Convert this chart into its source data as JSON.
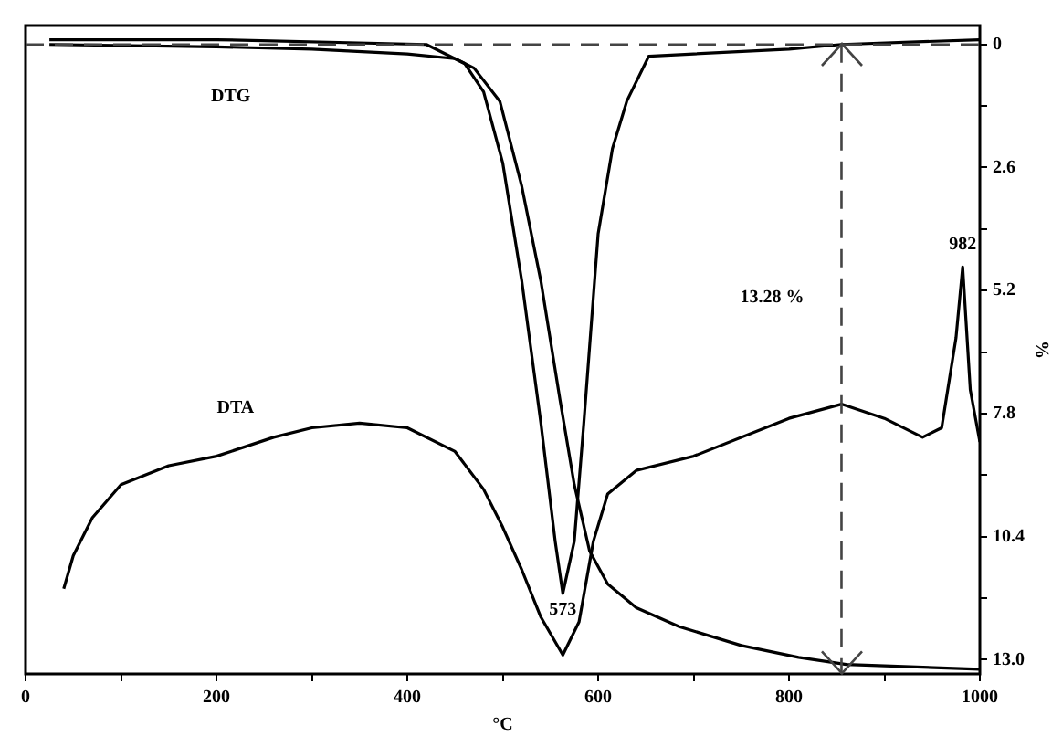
{
  "chart_data": {
    "type": "line",
    "xlabel": "°C",
    "ylabel": "%",
    "xlim": [
      0,
      1000
    ],
    "xticks": [
      0,
      {
        "value": 100,
        "label": null
      },
      200,
      {
        "value": 300,
        "label": null
      },
      400,
      {
        "value": 500,
        "label": null
      },
      600,
      {
        "value": 700,
        "label": null
      },
      800,
      {
        "value": 900,
        "label": null
      },
      1000
    ],
    "ylim": [
      13.3,
      -0.4
    ],
    "yticks": [
      0,
      {
        "value": 1.3,
        "label": null
      },
      2.6,
      {
        "value": 3.9,
        "label": null
      },
      5.2,
      {
        "value": 6.5,
        "label": null
      },
      7.8,
      {
        "value": 9.1,
        "label": null
      },
      10.4,
      {
        "value": 11.7,
        "label": null
      },
      {
        "value": 13,
        "label": "13.0"
      }
    ],
    "grid": false,
    "legend": false,
    "marker": "none",
    "line_style": "solid",
    "series": [
      {
        "color": "#000000",
        "x": [
          25,
          200,
          300,
          400,
          450,
          470,
          497,
          520,
          540,
          560,
          575,
          591,
          610,
          640,
          685,
          750,
          810,
          860,
          1000
        ],
        "values": [
          0,
          0.05,
          0.1,
          0.2,
          0.3,
          0.5,
          1.2,
          3.0,
          5.0,
          7.5,
          9.3,
          10.7,
          11.4,
          11.9,
          12.3,
          12.7,
          12.95,
          13.1,
          13.2
        ]
      },
      {
        "name": "DTG",
        "color": "#000000",
        "x": [
          25,
          200,
          420,
          460,
          480,
          500,
          520,
          540,
          555,
          563,
          575,
          585,
          600,
          615,
          630,
          653,
          700,
          800,
          855,
          1000
        ],
        "values": [
          -0.1,
          -0.1,
          0,
          0.4,
          1.0,
          2.5,
          5,
          8,
          10.5,
          11.6,
          10.5,
          8,
          4,
          2.2,
          1.2,
          0.25,
          0.2,
          0.1,
          0,
          -0.1
        ]
      },
      {
        "name": "DTA",
        "color": "#000000",
        "x": [
          40,
          50,
          70,
          100,
          150,
          200,
          215,
          260,
          300,
          350,
          400,
          450,
          480,
          500,
          520,
          540,
          563,
          580,
          595,
          610,
          640,
          700,
          800,
          855,
          900,
          940,
          960,
          975,
          982,
          990,
          1000
        ],
        "values": [
          11.5,
          10.8,
          10.0,
          9.3,
          8.9,
          8.7,
          8.6,
          8.3,
          8.1,
          8.0,
          8.1,
          8.6,
          9.4,
          10.2,
          11.1,
          12.1,
          12.9,
          12.2,
          10.5,
          9.5,
          9.0,
          8.7,
          7.9,
          7.6,
          7.9,
          8.3,
          8.1,
          6.2,
          4.7,
          7.3,
          8.4
        ]
      }
    ],
    "ref_lines": [
      {
        "axis": "y",
        "value": 0,
        "line_style": "dashed"
      },
      {
        "axis": "x",
        "value": 855,
        "line_style": "dashed"
      }
    ],
    "annotations": [
      "13.28 %",
      {
        "text": "573",
        "x": 563,
        "y": 11.6
      },
      {
        "text": "982",
        "x": 982,
        "y": 4.7
      }
    ]
  }
}
